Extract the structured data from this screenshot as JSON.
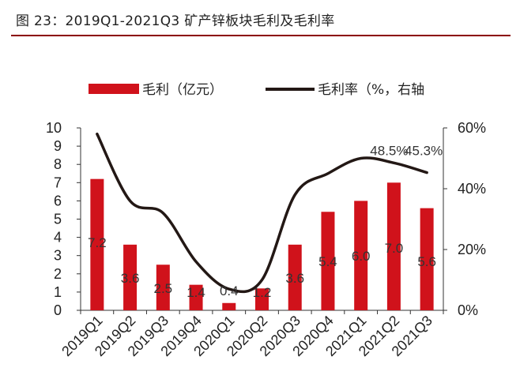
{
  "figure_title": "图 23：2019Q1-2021Q3 矿产锌板块毛利及毛利率",
  "chart_data": {
    "type": "bar",
    "categories": [
      "2019Q1",
      "2019Q2",
      "2019Q3",
      "2019Q4",
      "2020Q1",
      "2020Q2",
      "2020Q3",
      "2020Q4",
      "2021Q1",
      "2021Q2",
      "2021Q3"
    ],
    "series": [
      {
        "name": "毛利（亿元）",
        "type": "bar",
        "axis": "left",
        "color": "#d0121b",
        "values": [
          7.2,
          3.6,
          2.5,
          1.4,
          0.4,
          1.2,
          3.6,
          5.4,
          6.0,
          7.0,
          5.6
        ],
        "labels": [
          "7.2",
          "3.6",
          "2.5",
          "1.4",
          "0.4",
          "1.2",
          "3.6",
          "5.4",
          "6.0",
          "7.0",
          "5.6"
        ]
      },
      {
        "name": "毛利率（%，右轴",
        "type": "line",
        "axis": "right",
        "color": "#231815",
        "values": [
          58,
          36,
          32,
          16,
          7,
          10,
          38,
          45,
          50,
          48.5,
          45.3
        ]
      }
    ],
    "rate_labels": [
      {
        "index": 9,
        "text": "48.5%"
      },
      {
        "index": 10,
        "text": "45.3%"
      }
    ],
    "y_left": {
      "min": 0,
      "max": 10,
      "ticks": [
        "0",
        "1",
        "2",
        "3",
        "4",
        "5",
        "6",
        "7",
        "8",
        "9",
        "10"
      ]
    },
    "y_right": {
      "min": 0,
      "max": 60,
      "ticks": [
        "0%",
        "20%",
        "40%",
        "60%"
      ]
    },
    "legend_position": "top",
    "grid": false
  }
}
